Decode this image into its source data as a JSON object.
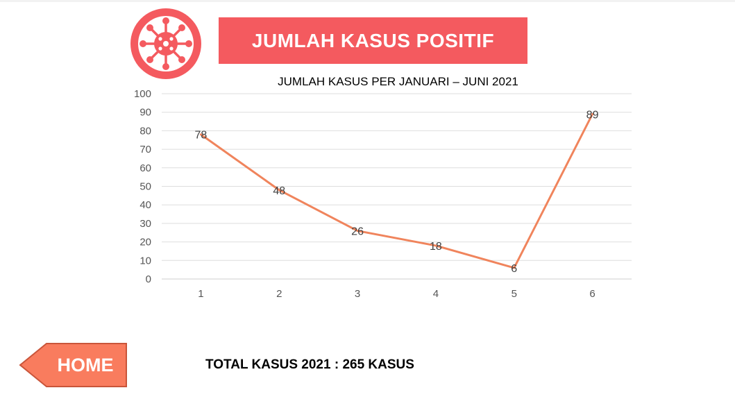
{
  "header": {
    "title": "JUMLAH KASUS POSITIF",
    "logo_icon": "virus-icon",
    "banner_color": "#f45a5f"
  },
  "chart_data": {
    "type": "line",
    "title": "JUMLAH KASUS PER JANUARI – JUNI 2021",
    "xlabel": "",
    "ylabel": "",
    "categories": [
      "1",
      "2",
      "3",
      "4",
      "5",
      "6"
    ],
    "series": [
      {
        "values": [
          78,
          48,
          26,
          18,
          6,
          89
        ],
        "color": "#f0845c"
      }
    ],
    "ylim": [
      0,
      100
    ],
    "yticks": [
      0,
      10,
      20,
      30,
      40,
      50,
      60,
      70,
      80,
      90,
      100
    ],
    "grid": true,
    "data_labels": [
      "78",
      "48",
      "26",
      "18",
      "6",
      "89"
    ]
  },
  "nav": {
    "home_label": "HOME",
    "home_color": "#f97c5e"
  },
  "footer": {
    "total_text": "TOTAL KASUS 2021 : 265 KASUS"
  }
}
